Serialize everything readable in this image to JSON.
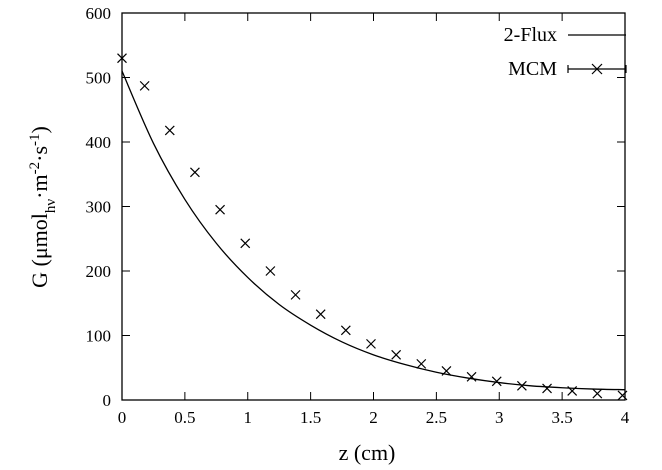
{
  "chart_data": {
    "type": "scatter",
    "title": "",
    "xlabel": "z (cm)",
    "ylabel": {
      "main": "G (μmol",
      "sub1": "hν",
      "mid": "·m",
      "sup1": "-2",
      "mid2": "·s",
      "sup2": "-1",
      "end": ")"
    },
    "xlim": [
      0,
      4
    ],
    "ylim": [
      0,
      600
    ],
    "xticks": [
      "0",
      "0.5",
      "1",
      "1.5",
      "2",
      "2.5",
      "3",
      "3.5",
      "4"
    ],
    "yticks": [
      "0",
      "100",
      "200",
      "300",
      "400",
      "500",
      "600"
    ],
    "grid": false,
    "legend_position": "top-right",
    "series": [
      {
        "name": "2-Flux",
        "style": "line",
        "color": "#000000",
        "x": [
          0,
          0.25,
          0.5,
          0.75,
          1.0,
          1.25,
          1.5,
          1.75,
          2.0,
          2.25,
          2.5,
          2.75,
          3.0,
          3.25,
          3.5,
          3.75,
          4.0
        ],
        "y": [
          510,
          398,
          311,
          243,
          190,
          148,
          116,
          90,
          70,
          55,
          43,
          34,
          27,
          22,
          19,
          17,
          16
        ]
      },
      {
        "name": "MCM",
        "style": "points-with-errorbars",
        "marker": "x",
        "color": "#000000",
        "x": [
          0,
          0.18,
          0.38,
          0.58,
          0.78,
          0.98,
          1.18,
          1.38,
          1.58,
          1.78,
          1.98,
          2.18,
          2.38,
          2.58,
          2.78,
          2.98,
          3.18,
          3.38,
          3.58,
          3.78,
          3.98
        ],
        "y": [
          530,
          487,
          418,
          353,
          295,
          243,
          200,
          163,
          133,
          108,
          87,
          70,
          56,
          45,
          36,
          29,
          22,
          18,
          14,
          10,
          7
        ]
      }
    ]
  }
}
